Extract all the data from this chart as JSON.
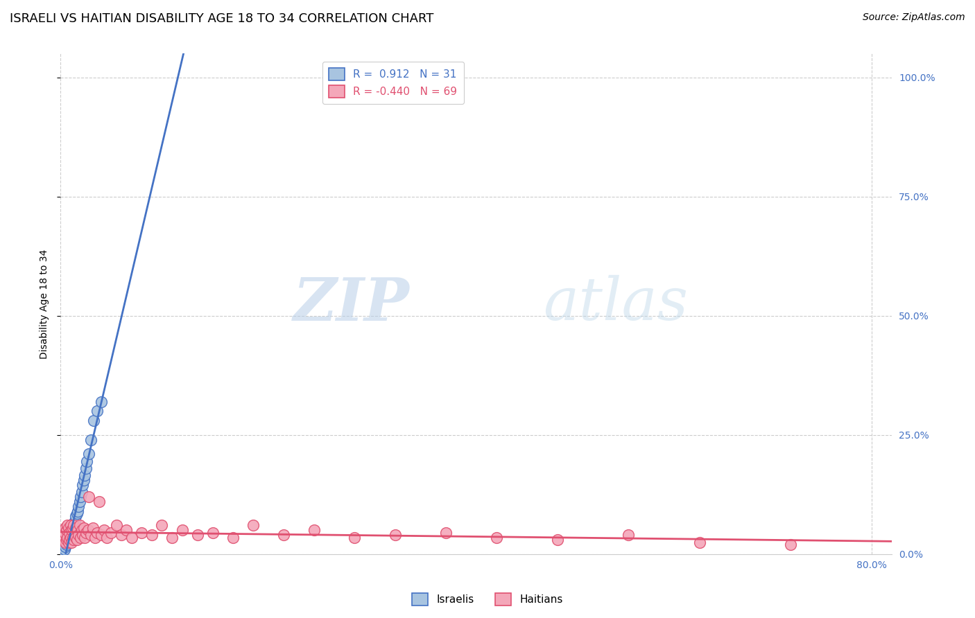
{
  "title": "ISRAELI VS HAITIAN DISABILITY AGE 18 TO 34 CORRELATION CHART",
  "source": "Source: ZipAtlas.com",
  "ylabel": "Disability Age 18 to 34",
  "israeli_R": 0.912,
  "israeli_N": 31,
  "haitian_R": -0.44,
  "haitian_N": 69,
  "israeli_color": "#a8c4e0",
  "israeli_line_color": "#4472c4",
  "haitian_color": "#f4a7b9",
  "haitian_line_color": "#e05070",
  "legend_label_israeli": "Israelis",
  "legend_label_haitian": "Haitians",
  "watermark_zip": "ZIP",
  "watermark_atlas": "atlas",
  "title_fontsize": 13,
  "axis_label_fontsize": 10,
  "tick_fontsize": 10,
  "source_fontsize": 10,
  "tick_color": "#4472c4",
  "xlim": [
    0.0,
    0.82
  ],
  "ylim": [
    0.0,
    1.05
  ],
  "xtick_vals": [
    0.0,
    0.8
  ],
  "xtick_labels": [
    "0.0%",
    "80.0%"
  ],
  "ytick_vals": [
    0.0,
    0.25,
    0.5,
    0.75,
    1.0
  ],
  "ytick_labels": [
    "0.0%",
    "25.0%",
    "50.0%",
    "75.0%",
    "100.0%"
  ],
  "israeli_x": [
    0.002,
    0.004,
    0.005,
    0.006,
    0.007,
    0.008,
    0.009,
    0.01,
    0.01,
    0.011,
    0.012,
    0.013,
    0.013,
    0.014,
    0.015,
    0.016,
    0.017,
    0.018,
    0.019,
    0.02,
    0.021,
    0.022,
    0.023,
    0.024,
    0.025,
    0.026,
    0.028,
    0.03,
    0.033,
    0.036,
    0.04
  ],
  "israeli_y": [
    0.005,
    0.01,
    0.015,
    0.02,
    0.025,
    0.03,
    0.035,
    0.04,
    0.045,
    0.05,
    0.055,
    0.06,
    0.065,
    0.07,
    0.08,
    0.085,
    0.09,
    0.1,
    0.11,
    0.12,
    0.13,
    0.145,
    0.155,
    0.165,
    0.18,
    0.195,
    0.21,
    0.24,
    0.28,
    0.3,
    0.32
  ],
  "haitian_x": [
    0.001,
    0.002,
    0.003,
    0.004,
    0.005,
    0.005,
    0.006,
    0.006,
    0.007,
    0.007,
    0.008,
    0.008,
    0.009,
    0.009,
    0.01,
    0.01,
    0.011,
    0.011,
    0.012,
    0.012,
    0.013,
    0.013,
    0.014,
    0.015,
    0.015,
    0.016,
    0.017,
    0.018,
    0.019,
    0.02,
    0.021,
    0.022,
    0.023,
    0.024,
    0.025,
    0.027,
    0.028,
    0.03,
    0.032,
    0.034,
    0.036,
    0.038,
    0.04,
    0.043,
    0.046,
    0.05,
    0.055,
    0.06,
    0.065,
    0.07,
    0.08,
    0.09,
    0.1,
    0.11,
    0.12,
    0.135,
    0.15,
    0.17,
    0.19,
    0.22,
    0.25,
    0.29,
    0.33,
    0.38,
    0.43,
    0.49,
    0.56,
    0.63,
    0.72
  ],
  "haitian_y": [
    0.04,
    0.035,
    0.03,
    0.045,
    0.025,
    0.055,
    0.03,
    0.05,
    0.035,
    0.06,
    0.025,
    0.055,
    0.03,
    0.045,
    0.035,
    0.06,
    0.025,
    0.05,
    0.035,
    0.055,
    0.03,
    0.06,
    0.04,
    0.035,
    0.055,
    0.03,
    0.05,
    0.04,
    0.06,
    0.035,
    0.05,
    0.04,
    0.055,
    0.035,
    0.045,
    0.05,
    0.12,
    0.04,
    0.055,
    0.035,
    0.045,
    0.11,
    0.04,
    0.05,
    0.035,
    0.045,
    0.06,
    0.04,
    0.05,
    0.035,
    0.045,
    0.04,
    0.06,
    0.035,
    0.05,
    0.04,
    0.045,
    0.035,
    0.06,
    0.04,
    0.05,
    0.035,
    0.04,
    0.045,
    0.035,
    0.03,
    0.04,
    0.025,
    0.02
  ]
}
